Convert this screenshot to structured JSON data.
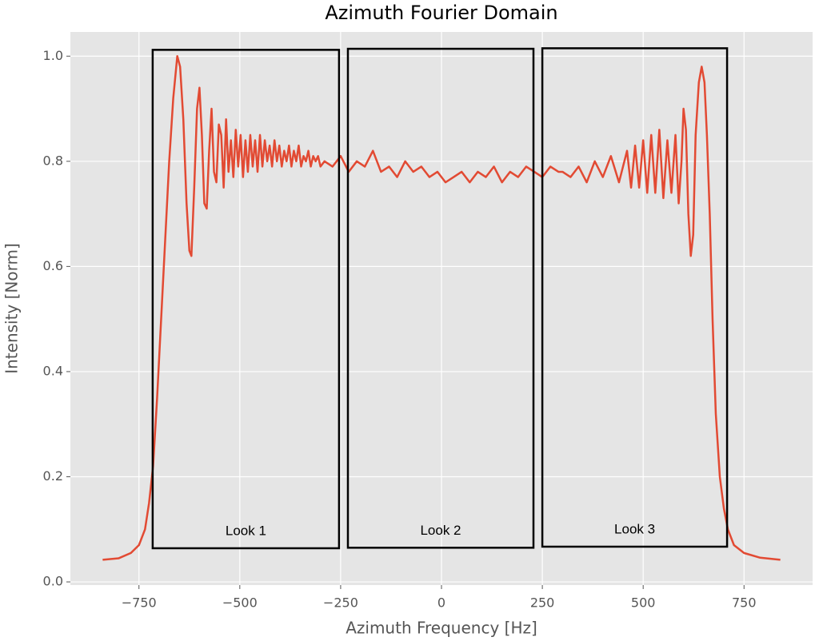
{
  "chart_data": {
    "type": "line",
    "title": "Azimuth Fourier Domain",
    "x_label": "Azimuth Frequency [Hz]",
    "y_label": "Intensity [Norm]",
    "xlim": [
      -920,
      920
    ],
    "ylim": [
      -0.006,
      1.046
    ],
    "xticks": [
      {
        "value": -750,
        "label": "−750"
      },
      {
        "value": -500,
        "label": "−500"
      },
      {
        "value": -250,
        "label": "−250"
      },
      0,
      250,
      500,
      750
    ],
    "yticks": [
      {
        "value": 0,
        "label": "0.0"
      },
      0.2,
      0.4,
      0.6,
      0.8,
      {
        "value": 1,
        "label": "1.0"
      }
    ],
    "grid": true,
    "series": [
      {
        "color": "#e24a33",
        "x": [
          -840,
          -800,
          -770,
          -750,
          -735,
          -725,
          -715,
          -705,
          -695,
          -685,
          -675,
          -665,
          -655,
          -648,
          -640,
          -632,
          -625,
          -620,
          -613,
          -606,
          -600,
          -594,
          -588,
          -582,
          -576,
          -570,
          -564,
          -558,
          -552,
          -546,
          -540,
          -534,
          -528,
          -522,
          -516,
          -510,
          -504,
          -498,
          -492,
          -486,
          -480,
          -474,
          -468,
          -462,
          -456,
          -450,
          -444,
          -438,
          -432,
          -426,
          -420,
          -414,
          -408,
          -402,
          -396,
          -390,
          -384,
          -378,
          -372,
          -366,
          -360,
          -354,
          -348,
          -342,
          -336,
          -330,
          -324,
          -318,
          -312,
          -306,
          -300,
          -290,
          -270,
          -250,
          -230,
          -210,
          -190,
          -170,
          -150,
          -130,
          -110,
          -90,
          -70,
          -50,
          -30,
          -10,
          10,
          30,
          50,
          70,
          90,
          110,
          130,
          150,
          170,
          190,
          210,
          230,
          250,
          270,
          290,
          300,
          320,
          340,
          360,
          380,
          400,
          420,
          440,
          460,
          470,
          480,
          490,
          500,
          510,
          520,
          530,
          540,
          550,
          560,
          570,
          580,
          588,
          595,
          600,
          606,
          612,
          618,
          624,
          630,
          638,
          645,
          652,
          658,
          665,
          672,
          680,
          690,
          700,
          710,
          725,
          750,
          790,
          840
        ],
        "values": [
          0.042,
          0.045,
          0.055,
          0.07,
          0.1,
          0.15,
          0.22,
          0.35,
          0.5,
          0.65,
          0.8,
          0.92,
          1.0,
          0.98,
          0.88,
          0.72,
          0.63,
          0.62,
          0.75,
          0.9,
          0.94,
          0.85,
          0.72,
          0.71,
          0.82,
          0.9,
          0.78,
          0.76,
          0.87,
          0.85,
          0.75,
          0.88,
          0.78,
          0.84,
          0.77,
          0.86,
          0.79,
          0.85,
          0.77,
          0.84,
          0.78,
          0.85,
          0.79,
          0.84,
          0.78,
          0.85,
          0.79,
          0.84,
          0.8,
          0.83,
          0.79,
          0.84,
          0.8,
          0.83,
          0.79,
          0.82,
          0.8,
          0.83,
          0.79,
          0.82,
          0.8,
          0.83,
          0.79,
          0.81,
          0.8,
          0.82,
          0.79,
          0.81,
          0.8,
          0.81,
          0.79,
          0.8,
          0.79,
          0.81,
          0.78,
          0.8,
          0.79,
          0.82,
          0.78,
          0.79,
          0.77,
          0.8,
          0.78,
          0.79,
          0.77,
          0.78,
          0.76,
          0.77,
          0.78,
          0.76,
          0.78,
          0.77,
          0.79,
          0.76,
          0.78,
          0.77,
          0.79,
          0.78,
          0.77,
          0.79,
          0.78,
          0.78,
          0.77,
          0.79,
          0.76,
          0.8,
          0.77,
          0.81,
          0.76,
          0.82,
          0.75,
          0.83,
          0.75,
          0.84,
          0.74,
          0.85,
          0.74,
          0.86,
          0.73,
          0.84,
          0.74,
          0.85,
          0.72,
          0.8,
          0.9,
          0.86,
          0.7,
          0.62,
          0.66,
          0.85,
          0.95,
          0.98,
          0.95,
          0.85,
          0.7,
          0.5,
          0.32,
          0.2,
          0.14,
          0.1,
          0.07,
          0.055,
          0.046,
          0.042
        ]
      }
    ],
    "annotations": [
      {
        "label": "Look 1",
        "x": [
          -716,
          -254
        ],
        "y": [
          0.064,
          1.012
        ]
      },
      {
        "label": "Look 2",
        "x": [
          -232,
          228
        ],
        "y": [
          0.065,
          1.014
        ]
      },
      {
        "label": "Look 3",
        "x": [
          250,
          708
        ],
        "y": [
          0.067,
          1.015
        ]
      }
    ]
  }
}
